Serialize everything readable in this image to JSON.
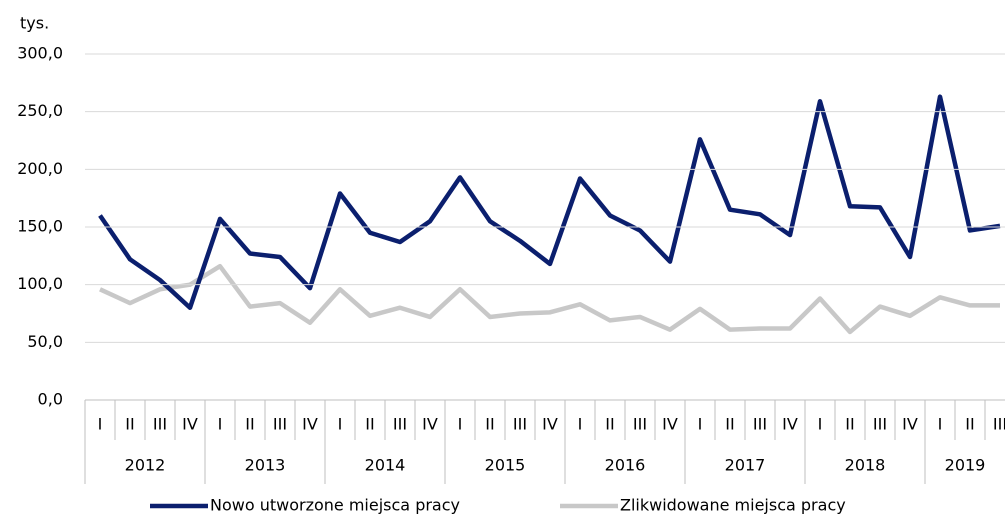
{
  "chart_data": {
    "type": "line",
    "y_label": "tys.",
    "categories": [
      "I",
      "II",
      "III",
      "IV",
      "I",
      "II",
      "III",
      "IV",
      "I",
      "II",
      "III",
      "IV",
      "I",
      "II",
      "III",
      "IV",
      "I",
      "II",
      "III",
      "IV",
      "I",
      "II",
      "III",
      "IV",
      "I",
      "II",
      "III",
      "IV",
      "I",
      "II",
      "III"
    ],
    "years": [
      "2012",
      "2013",
      "2014",
      "2015",
      "2016",
      "2017",
      "2018",
      "2019"
    ],
    "series": [
      {
        "name": "Nowo utworzone miejsca pracy",
        "color": "#0b1f6e",
        "values": [
          160,
          122,
          104,
          80,
          157,
          127,
          124,
          97,
          179,
          145,
          137,
          155,
          193,
          155,
          138,
          118,
          192,
          160,
          147,
          120,
          226,
          165,
          161,
          143,
          259,
          168,
          167,
          124,
          263,
          147,
          151
        ]
      },
      {
        "name": "Zlikwidowane miejsca pracy",
        "color": "#c8c8c8",
        "values": [
          96,
          84,
          96,
          100,
          116,
          81,
          84,
          67,
          96,
          73,
          80,
          72,
          96,
          72,
          75,
          76,
          83,
          69,
          72,
          61,
          79,
          61,
          62,
          62,
          88,
          59,
          81,
          73,
          89,
          82,
          82
        ]
      }
    ],
    "ylim": [
      0,
      300
    ],
    "yticks": [
      {
        "value": 0,
        "label": "0,0"
      },
      {
        "value": 50,
        "label": "50,0"
      },
      {
        "value": 100,
        "label": "100,0"
      },
      {
        "value": 150,
        "label": "150,0"
      },
      {
        "value": 200,
        "label": "200,0"
      },
      {
        "value": 250,
        "label": "250,0"
      },
      {
        "value": 300,
        "label": "300,0"
      }
    ],
    "grid": true
  }
}
